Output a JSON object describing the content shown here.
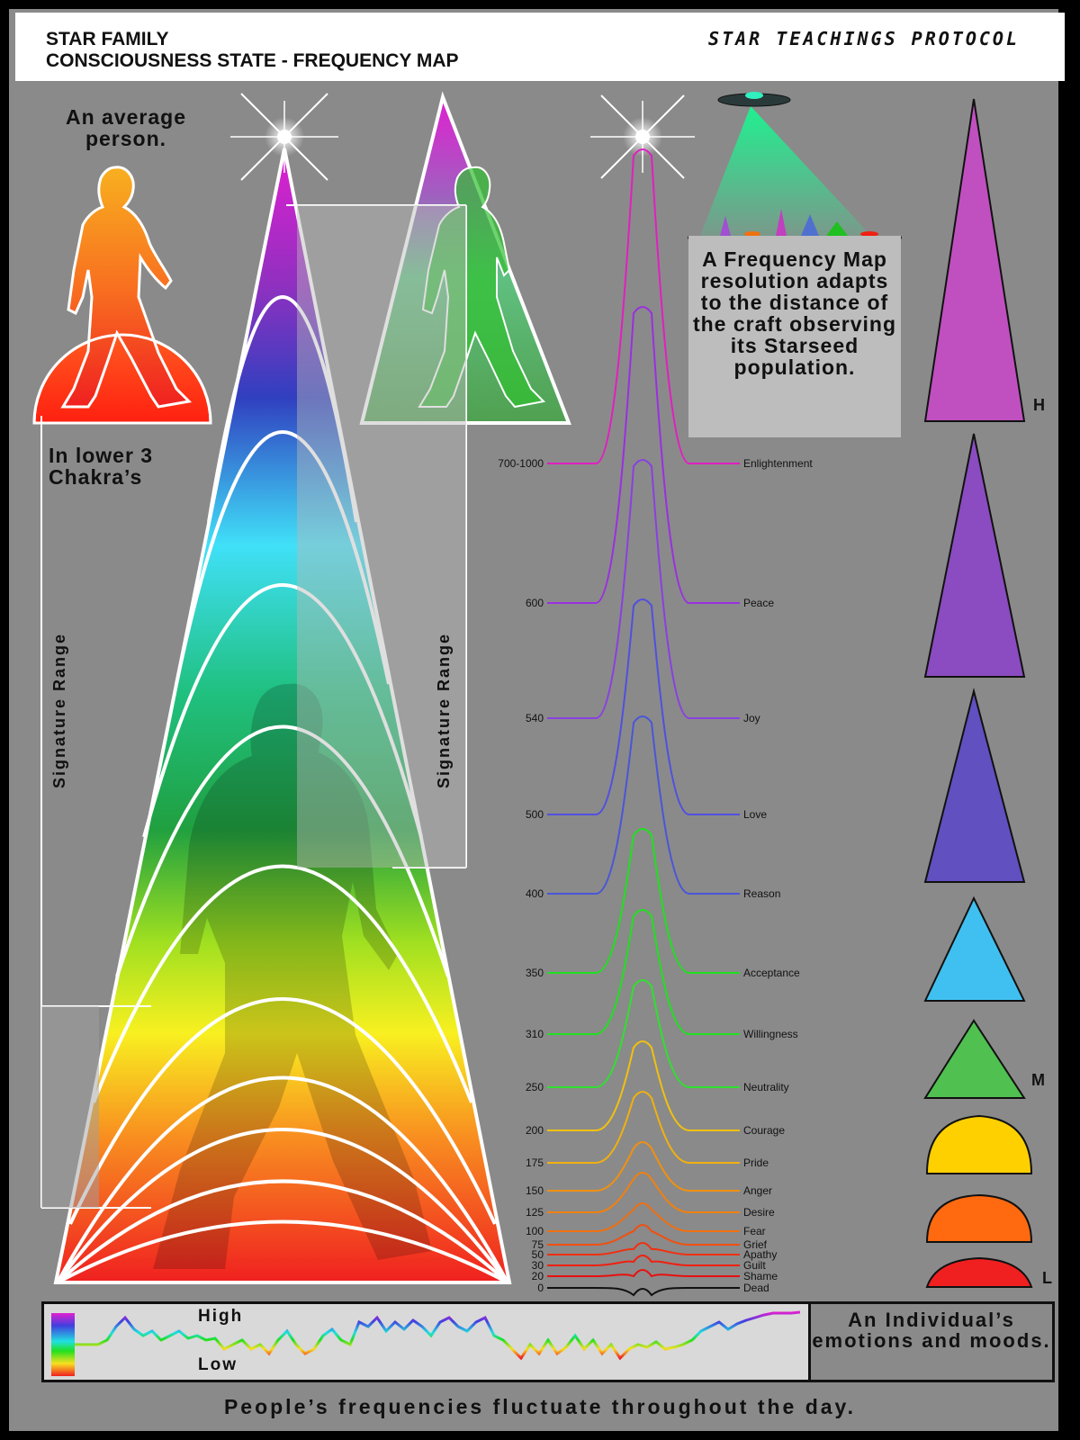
{
  "header": {
    "title_line1": "STAR FAMILY",
    "title_line2": "CONSCIOUSNESS STATE - FREQUENCY MAP",
    "protocol": "STAR TEACHINGS PROTOCOL"
  },
  "left": {
    "average_person": "An average person.",
    "lower_chakras": "In lower 3 Chakra’s",
    "signature_range_left": "Signature Range",
    "signature_range_right": "Signature Range"
  },
  "infobox": {
    "text": "A Frequency Map resolution adapts to the distance of the craft observing its Starseed population."
  },
  "levels": [
    {
      "value": "700-1000",
      "name": "Enlightenment",
      "color": "#e020c0"
    },
    {
      "value": "600",
      "name": "Peace",
      "color": "#9a30e0"
    },
    {
      "value": "540",
      "name": "Joy",
      "color": "#8a40e0"
    },
    {
      "value": "500",
      "name": "Love",
      "color": "#5050e0"
    },
    {
      "value": "400",
      "name": "Reason",
      "color": "#4a56d8"
    },
    {
      "value": "350",
      "name": "Acceptance",
      "color": "#20e020"
    },
    {
      "value": "310",
      "name": "Willingness",
      "color": "#20e020"
    },
    {
      "value": "250",
      "name": "Neutrality",
      "color": "#30e030"
    },
    {
      "value": "200",
      "name": "Courage",
      "color": "#f0c010"
    },
    {
      "value": "175",
      "name": "Pride",
      "color": "#f0b010"
    },
    {
      "value": "150",
      "name": "Anger",
      "color": "#f09010"
    },
    {
      "value": "125",
      "name": "Desire",
      "color": "#f08010"
    },
    {
      "value": "100",
      "name": "Fear",
      "color": "#f07010"
    },
    {
      "value": "75",
      "name": "Grief",
      "color": "#f05010"
    },
    {
      "value": "50",
      "name": "Apathy",
      "color": "#f03010"
    },
    {
      "value": "30",
      "name": "Guilt",
      "color": "#f02010"
    },
    {
      "value": "20",
      "name": "Shame",
      "color": "#e81010"
    },
    {
      "value": "0",
      "name": "Dead",
      "color": "#111111"
    }
  ],
  "scale": {
    "high": "H",
    "mid": "M",
    "low": "L"
  },
  "mood": {
    "high_label": "High",
    "low_label": "Low",
    "description": "An Individual’s emotions and moods."
  },
  "footer": "People’s frequencies fluctuate throughout the day."
}
